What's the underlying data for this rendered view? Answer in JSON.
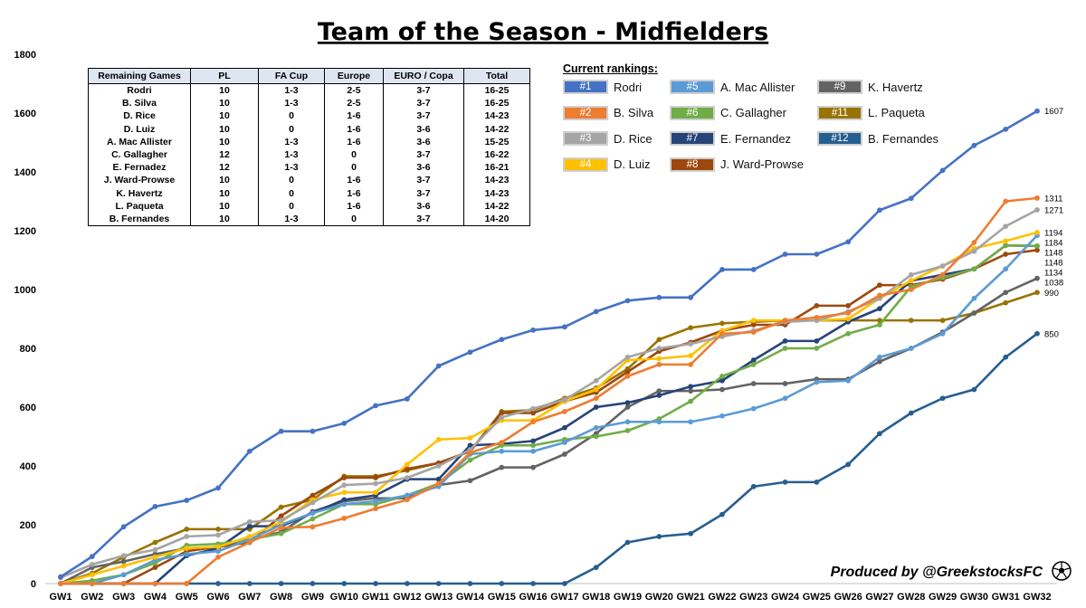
{
  "chart_data": {
    "type": "line",
    "title": "Team of the Season - Midfielders",
    "x": [
      "GW1",
      "GW2",
      "GW3",
      "GW4",
      "GW5",
      "GW6",
      "GW7",
      "GW8",
      "GW9",
      "GW10",
      "GW11",
      "GW12",
      "GW13",
      "GW14",
      "GW15",
      "GW16",
      "GW17",
      "GW18",
      "GW19",
      "GW20",
      "GW21",
      "GW22",
      "GW23",
      "GW24",
      "GW25",
      "GW26",
      "GW27",
      "GW28",
      "GW29",
      "GW30",
      "GW31",
      "GW32"
    ],
    "ylim": [
      0,
      1800
    ],
    "yticks": [
      0,
      200,
      400,
      600,
      800,
      1000,
      1200,
      1400,
      1600,
      1800
    ],
    "grid": false,
    "series": [
      {
        "name": "Rodri",
        "rank": "#1",
        "color": "#4472c4",
        "end_label": "1607",
        "values": [
          23,
          92,
          193,
          262,
          283,
          325,
          450,
          518,
          518,
          545,
          605,
          628,
          740,
          787,
          830,
          862,
          873,
          925,
          962,
          973,
          973,
          1068,
          1068,
          1120,
          1120,
          1162,
          1270,
          1310,
          1405,
          1490,
          1545,
          1607
        ]
      },
      {
        "name": "B. Silva",
        "rank": "#2",
        "color": "#ed7d31",
        "end_label": "1311",
        "values": [
          0,
          0,
          0,
          0,
          0,
          90,
          140,
          190,
          193,
          222,
          255,
          285,
          340,
          445,
          480,
          550,
          585,
          630,
          705,
          745,
          745,
          850,
          855,
          895,
          905,
          920,
          980,
          1000,
          1050,
          1160,
          1300,
          1311
        ]
      },
      {
        "name": "D. Rice",
        "rank": "#3",
        "color": "#a5a5a5",
        "end_label": "1271",
        "values": [
          20,
          65,
          95,
          115,
          160,
          165,
          210,
          215,
          275,
          335,
          340,
          360,
          400,
          455,
          565,
          595,
          625,
          690,
          770,
          800,
          815,
          840,
          860,
          890,
          895,
          925,
          970,
          1050,
          1080,
          1130,
          1215,
          1271
        ]
      },
      {
        "name": "D. Luiz",
        "rank": "#4",
        "color": "#ffc000",
        "end_label": "1194",
        "values": [
          0,
          30,
          60,
          90,
          120,
          125,
          160,
          210,
          285,
          310,
          310,
          405,
          490,
          495,
          555,
          555,
          620,
          660,
          760,
          765,
          775,
          860,
          895,
          895,
          895,
          900,
          970,
          1030,
          1080,
          1140,
          1165,
          1194
        ]
      },
      {
        "name": "A. Mac Allister",
        "rank": "#5",
        "color": "#5b9bd5",
        "end_label": "1184",
        "values": [
          0,
          0,
          30,
          80,
          100,
          110,
          150,
          200,
          240,
          270,
          280,
          300,
          330,
          440,
          450,
          450,
          480,
          530,
          550,
          550,
          550,
          570,
          595,
          630,
          685,
          690,
          770,
          800,
          850,
          970,
          1070,
          1184
        ]
      },
      {
        "name": "C. Gallagher",
        "rank": "#6",
        "color": "#70ad47",
        "end_label": "1148",
        "values": [
          0,
          10,
          30,
          70,
          130,
          135,
          150,
          170,
          220,
          270,
          270,
          300,
          340,
          420,
          470,
          470,
          490,
          500,
          520,
          560,
          620,
          705,
          745,
          800,
          800,
          850,
          880,
          1010,
          1040,
          1070,
          1150,
          1148
        ]
      },
      {
        "name": "E. Fernandez",
        "rank": "#7",
        "color": "#264478",
        "end_label": "1148",
        "values": [
          0,
          0,
          0,
          0,
          95,
          120,
          195,
          195,
          240,
          285,
          300,
          355,
          355,
          470,
          475,
          485,
          530,
          600,
          615,
          640,
          670,
          690,
          760,
          825,
          825,
          890,
          935,
          1030,
          1050,
          1070,
          1150,
          1148
        ]
      },
      {
        "name": "J. Ward-Prowse",
        "rank": "#8",
        "color": "#9e480e",
        "end_label": "1134",
        "values": [
          0,
          0,
          0,
          55,
          110,
          125,
          140,
          230,
          300,
          360,
          360,
          390,
          410,
          450,
          580,
          580,
          620,
          650,
          720,
          790,
          820,
          860,
          880,
          880,
          945,
          945,
          1015,
          1015,
          1035,
          1070,
          1120,
          1134
        ]
      },
      {
        "name": "K. Havertz",
        "rank": "#9",
        "color": "#636363",
        "end_label": "1038",
        "values": [
          0,
          55,
          75,
          100,
          120,
          125,
          150,
          175,
          245,
          280,
          290,
          290,
          335,
          350,
          395,
          395,
          440,
          510,
          600,
          655,
          655,
          660,
          680,
          680,
          695,
          695,
          755,
          800,
          855,
          920,
          990,
          1038
        ]
      },
      {
        "name": "L. Paqueta",
        "rank": "#11",
        "color": "#997300",
        "end_label": "990",
        "values": [
          0,
          35,
          90,
          140,
          185,
          185,
          185,
          260,
          285,
          365,
          365,
          385,
          410,
          450,
          585,
          590,
          630,
          665,
          730,
          830,
          870,
          885,
          890,
          895,
          895,
          895,
          895,
          895,
          895,
          920,
          955,
          990
        ]
      },
      {
        "name": "B. Fernandes",
        "rank": "#12",
        "color": "#255e91",
        "end_label": "850",
        "values": [
          0,
          0,
          0,
          0,
          0,
          0,
          0,
          0,
          0,
          0,
          0,
          0,
          0,
          0,
          0,
          0,
          0,
          55,
          140,
          160,
          170,
          235,
          330,
          345,
          345,
          405,
          510,
          580,
          630,
          660,
          770,
          850
        ]
      }
    ]
  },
  "table": {
    "headers": [
      "Remaining Games",
      "PL",
      "FA Cup",
      "Europe",
      "EURO / Copa",
      "Total"
    ],
    "rows": [
      [
        "Rodri",
        "10",
        "1-3",
        "2-5",
        "3-7",
        "16-25"
      ],
      [
        "B. Silva",
        "10",
        "1-3",
        "2-5",
        "3-7",
        "16-25"
      ],
      [
        "D. Rice",
        "10",
        "0",
        "1-6",
        "3-7",
        "14-23"
      ],
      [
        "D. Luiz",
        "10",
        "0",
        "1-6",
        "3-6",
        "14-22"
      ],
      [
        "A. Mac Allister",
        "10",
        "1-3",
        "1-6",
        "3-6",
        "15-25"
      ],
      [
        "C. Gallagher",
        "12",
        "1-3",
        "0",
        "3-7",
        "16-22"
      ],
      [
        "E. Fernadez",
        "12",
        "1-3",
        "0",
        "3-6",
        "16-21"
      ],
      [
        "J. Ward-Prowse",
        "10",
        "0",
        "1-6",
        "3-7",
        "14-23"
      ],
      [
        "K. Havertz",
        "10",
        "0",
        "1-6",
        "3-7",
        "14-23"
      ],
      [
        "L. Paqueta",
        "10",
        "0",
        "1-6",
        "3-6",
        "14-22"
      ],
      [
        "B. Fernandes",
        "10",
        "1-3",
        "0",
        "3-7",
        "14-20"
      ]
    ]
  },
  "rankings": {
    "title": "Current rankings:",
    "items": [
      {
        "rank": "#1",
        "name": "Rodri",
        "color": "#4472c4"
      },
      {
        "rank": "#2",
        "name": "B. Silva",
        "color": "#ed7d31"
      },
      {
        "rank": "#3",
        "name": "D. Rice",
        "color": "#a5a5a5"
      },
      {
        "rank": "#4",
        "name": "D. Luiz",
        "color": "#ffc000"
      },
      {
        "rank": "#5",
        "name": "A. Mac Allister",
        "color": "#5b9bd5"
      },
      {
        "rank": "#6",
        "name": "C. Gallagher",
        "color": "#70ad47"
      },
      {
        "rank": "#7",
        "name": "E. Fernandez",
        "color": "#264478"
      },
      {
        "rank": "#8",
        "name": "J. Ward-Prowse",
        "color": "#9e480e"
      },
      {
        "rank": "#9",
        "name": "K. Havertz",
        "color": "#636363"
      },
      {
        "rank": "#11",
        "name": "L. Paqueta",
        "color": "#997300"
      },
      {
        "rank": "#12",
        "name": "B. Fernandes",
        "color": "#255e91"
      }
    ]
  },
  "credit": "Produced by @GreekstocksFC",
  "credit_icon": "soccer-ball-icon"
}
